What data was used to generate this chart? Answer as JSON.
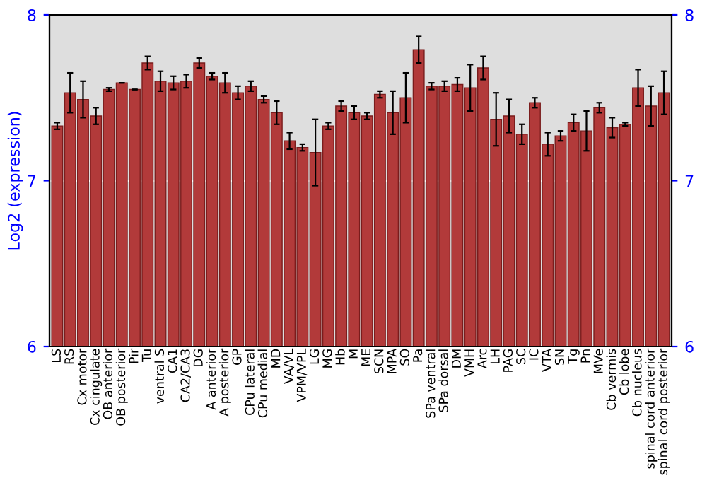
{
  "chart_data": {
    "type": "bar",
    "ylabel": "Log2 (expression)",
    "categories": [
      "LS",
      "RS",
      "Cx motor",
      "Cx cingulate",
      "OB anterior",
      "OB posterior",
      "Pir",
      "Tu",
      "ventral S",
      "CA1",
      "CA2/CA3",
      "DG",
      "A anterior",
      "A posterior",
      "GP",
      "CPu lateral",
      "CPu medial",
      "MD",
      "VA/VL",
      "VPM/VPL",
      "LG",
      "MG",
      "Hb",
      "M",
      "ME",
      "SCN",
      "MPA",
      "SO",
      "Pa",
      "SPa ventral",
      "SPa dorsal",
      "DM",
      "VMH",
      "Arc",
      "LH",
      "PAG",
      "SC",
      "IC",
      "VTA",
      "SN",
      "Tg",
      "Pn",
      "MVe",
      "Cb vermis",
      "Cb lobe",
      "Cb nucleus",
      "spinal cord anterior",
      "spinal cord posterior"
    ],
    "values": [
      7.33,
      7.53,
      7.49,
      7.39,
      7.55,
      7.59,
      7.55,
      7.71,
      7.6,
      7.59,
      7.6,
      7.71,
      7.63,
      7.59,
      7.53,
      7.57,
      7.49,
      7.41,
      7.24,
      7.2,
      7.17,
      7.33,
      7.45,
      7.41,
      7.39,
      7.52,
      7.41,
      7.5,
      7.79,
      7.57,
      7.57,
      7.58,
      7.56,
      7.68,
      7.37,
      7.39,
      7.28,
      7.47,
      7.22,
      7.27,
      7.35,
      7.3,
      7.44,
      7.32,
      7.34,
      7.56,
      7.45,
      7.53
    ],
    "errors": [
      0.02,
      0.12,
      0.11,
      0.05,
      0.01,
      0,
      0,
      0.04,
      0.06,
      0.04,
      0.04,
      0.03,
      0.02,
      0.06,
      0.04,
      0.03,
      0.02,
      0.07,
      0.05,
      0.02,
      0.2,
      0.02,
      0.03,
      0.04,
      0.02,
      0.02,
      0.13,
      0.15,
      0.08,
      0.02,
      0.03,
      0.04,
      0.14,
      0.07,
      0.16,
      0.1,
      0.06,
      0.03,
      0.07,
      0.03,
      0.05,
      0.12,
      0.03,
      0.06,
      0.01,
      0.11,
      0.12,
      0.13
    ],
    "color": "#b23a3a",
    "ylim": [
      6,
      8
    ],
    "yticks": [
      6,
      7,
      8
    ],
    "y2lim": [
      6,
      8
    ],
    "y2ticks": [
      6,
      7,
      8
    ],
    "grid": "y"
  }
}
